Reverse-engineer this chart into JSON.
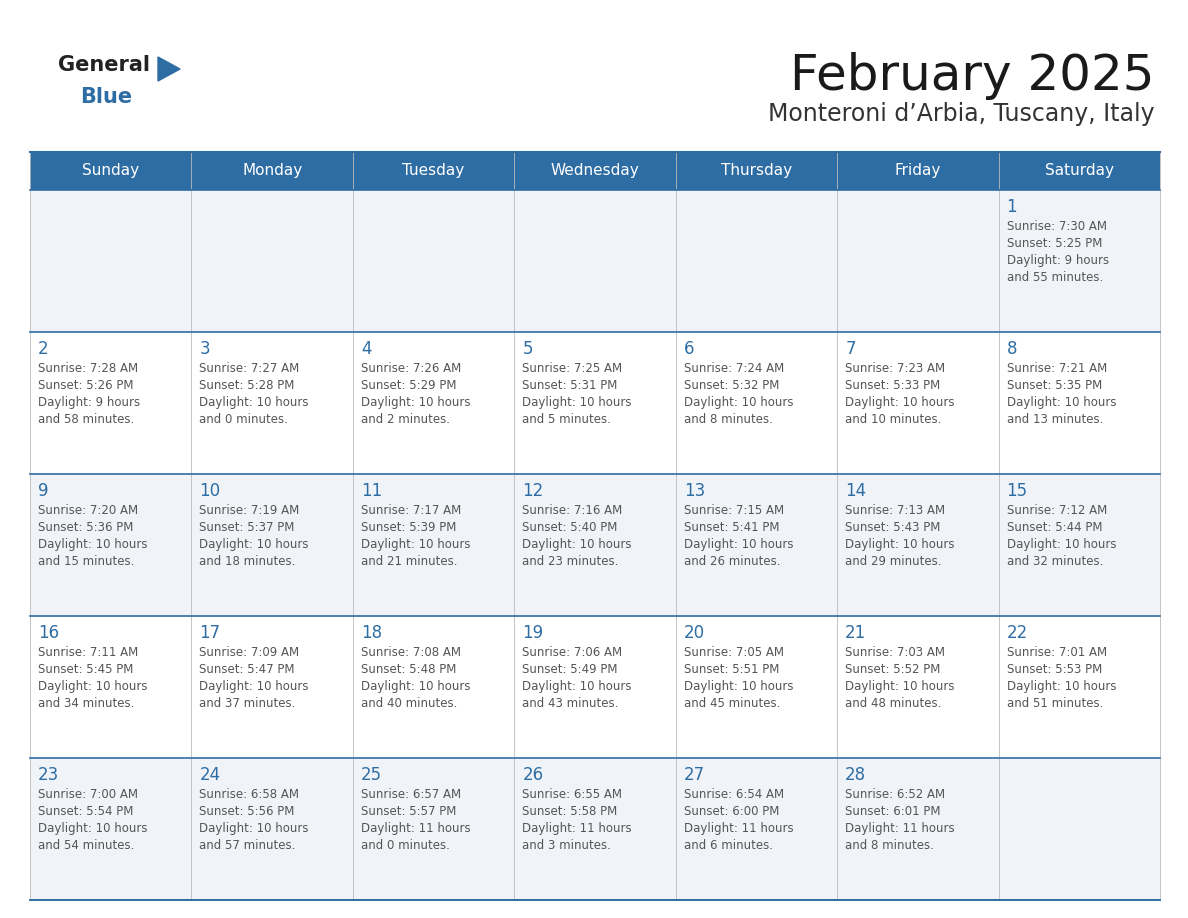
{
  "title": "February 2025",
  "subtitle": "Monteroni d’Arbia, Tuscany, Italy",
  "header_bg": "#2E6DA4",
  "header_text_color": "#FFFFFF",
  "cell_bg_odd": "#F0F4F8",
  "cell_bg_even": "#FFFFFF",
  "day_number_color": "#2E6DA4",
  "text_color": "#555555",
  "line_color": "#2E6DA4",
  "days_of_week": [
    "Sunday",
    "Monday",
    "Tuesday",
    "Wednesday",
    "Thursday",
    "Friday",
    "Saturday"
  ],
  "weeks": [
    [
      null,
      null,
      null,
      null,
      null,
      null,
      {
        "day": "1",
        "sunrise": "7:30 AM",
        "sunset": "5:25 PM",
        "daylight1": "9 hours",
        "daylight2": "and 55 minutes."
      }
    ],
    [
      {
        "day": "2",
        "sunrise": "7:28 AM",
        "sunset": "5:26 PM",
        "daylight1": "9 hours",
        "daylight2": "and 58 minutes."
      },
      {
        "day": "3",
        "sunrise": "7:27 AM",
        "sunset": "5:28 PM",
        "daylight1": "10 hours",
        "daylight2": "and 0 minutes."
      },
      {
        "day": "4",
        "sunrise": "7:26 AM",
        "sunset": "5:29 PM",
        "daylight1": "10 hours",
        "daylight2": "and 2 minutes."
      },
      {
        "day": "5",
        "sunrise": "7:25 AM",
        "sunset": "5:31 PM",
        "daylight1": "10 hours",
        "daylight2": "and 5 minutes."
      },
      {
        "day": "6",
        "sunrise": "7:24 AM",
        "sunset": "5:32 PM",
        "daylight1": "10 hours",
        "daylight2": "and 8 minutes."
      },
      {
        "day": "7",
        "sunrise": "7:23 AM",
        "sunset": "5:33 PM",
        "daylight1": "10 hours",
        "daylight2": "and 10 minutes."
      },
      {
        "day": "8",
        "sunrise": "7:21 AM",
        "sunset": "5:35 PM",
        "daylight1": "10 hours",
        "daylight2": "and 13 minutes."
      }
    ],
    [
      {
        "day": "9",
        "sunrise": "7:20 AM",
        "sunset": "5:36 PM",
        "daylight1": "10 hours",
        "daylight2": "and 15 minutes."
      },
      {
        "day": "10",
        "sunrise": "7:19 AM",
        "sunset": "5:37 PM",
        "daylight1": "10 hours",
        "daylight2": "and 18 minutes."
      },
      {
        "day": "11",
        "sunrise": "7:17 AM",
        "sunset": "5:39 PM",
        "daylight1": "10 hours",
        "daylight2": "and 21 minutes."
      },
      {
        "day": "12",
        "sunrise": "7:16 AM",
        "sunset": "5:40 PM",
        "daylight1": "10 hours",
        "daylight2": "and 23 minutes."
      },
      {
        "day": "13",
        "sunrise": "7:15 AM",
        "sunset": "5:41 PM",
        "daylight1": "10 hours",
        "daylight2": "and 26 minutes."
      },
      {
        "day": "14",
        "sunrise": "7:13 AM",
        "sunset": "5:43 PM",
        "daylight1": "10 hours",
        "daylight2": "and 29 minutes."
      },
      {
        "day": "15",
        "sunrise": "7:12 AM",
        "sunset": "5:44 PM",
        "daylight1": "10 hours",
        "daylight2": "and 32 minutes."
      }
    ],
    [
      {
        "day": "16",
        "sunrise": "7:11 AM",
        "sunset": "5:45 PM",
        "daylight1": "10 hours",
        "daylight2": "and 34 minutes."
      },
      {
        "day": "17",
        "sunrise": "7:09 AM",
        "sunset": "5:47 PM",
        "daylight1": "10 hours",
        "daylight2": "and 37 minutes."
      },
      {
        "day": "18",
        "sunrise": "7:08 AM",
        "sunset": "5:48 PM",
        "daylight1": "10 hours",
        "daylight2": "and 40 minutes."
      },
      {
        "day": "19",
        "sunrise": "7:06 AM",
        "sunset": "5:49 PM",
        "daylight1": "10 hours",
        "daylight2": "and 43 minutes."
      },
      {
        "day": "20",
        "sunrise": "7:05 AM",
        "sunset": "5:51 PM",
        "daylight1": "10 hours",
        "daylight2": "and 45 minutes."
      },
      {
        "day": "21",
        "sunrise": "7:03 AM",
        "sunset": "5:52 PM",
        "daylight1": "10 hours",
        "daylight2": "and 48 minutes."
      },
      {
        "day": "22",
        "sunrise": "7:01 AM",
        "sunset": "5:53 PM",
        "daylight1": "10 hours",
        "daylight2": "and 51 minutes."
      }
    ],
    [
      {
        "day": "23",
        "sunrise": "7:00 AM",
        "sunset": "5:54 PM",
        "daylight1": "10 hours",
        "daylight2": "and 54 minutes."
      },
      {
        "day": "24",
        "sunrise": "6:58 AM",
        "sunset": "5:56 PM",
        "daylight1": "10 hours",
        "daylight2": "and 57 minutes."
      },
      {
        "day": "25",
        "sunrise": "6:57 AM",
        "sunset": "5:57 PM",
        "daylight1": "11 hours",
        "daylight2": "and 0 minutes."
      },
      {
        "day": "26",
        "sunrise": "6:55 AM",
        "sunset": "5:58 PM",
        "daylight1": "11 hours",
        "daylight2": "and 3 minutes."
      },
      {
        "day": "27",
        "sunrise": "6:54 AM",
        "sunset": "6:00 PM",
        "daylight1": "11 hours",
        "daylight2": "and 6 minutes."
      },
      {
        "day": "28",
        "sunrise": "6:52 AM",
        "sunset": "6:01 PM",
        "daylight1": "11 hours",
        "daylight2": "and 8 minutes."
      },
      null
    ]
  ],
  "logo_general_color": "#222222",
  "logo_blue_color": "#2E6DA4",
  "logo_triangle_color": "#2E6DA4"
}
